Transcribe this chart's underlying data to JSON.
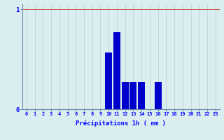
{
  "hours": [
    0,
    1,
    2,
    3,
    4,
    5,
    6,
    7,
    8,
    9,
    10,
    11,
    12,
    13,
    14,
    15,
    16,
    17,
    18,
    19,
    20,
    21,
    22,
    23
  ],
  "values": [
    0,
    0,
    0,
    0,
    0,
    0,
    0,
    0,
    0,
    0,
    0.57,
    0.77,
    0.27,
    0.27,
    0.27,
    0.0,
    0.27,
    0,
    0,
    0,
    0,
    0,
    0,
    0
  ],
  "bar_color": "#0000cc",
  "background_color": "#daeef0",
  "grid_color_v": "#b8ccd4",
  "grid_color_h": "#cc3333",
  "xlabel": "Précipitations 1h ( mm )",
  "ylim": [
    0,
    1.05
  ],
  "yticks": [
    0,
    1
  ],
  "ytick_labels": [
    "0",
    "1"
  ],
  "xlim": [
    -0.5,
    23.5
  ],
  "tick_fontsize": 5.0,
  "xlabel_fontsize": 6.5,
  "ytick_fontsize": 6.5
}
